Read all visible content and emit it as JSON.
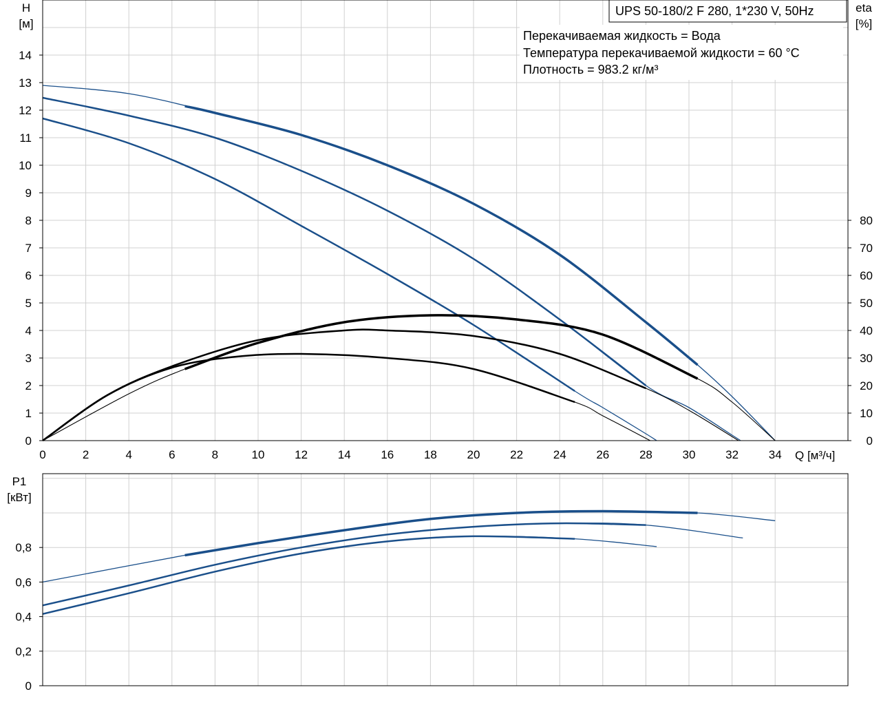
{
  "title_box": "UPS 50-180/2 F 280, 1*230 V, 50Hz",
  "info_lines": [
    "Перекачиваемая жидкость = Вода",
    "Температура перекачиваемой жидкости = 60 °C",
    "Плотность = 983.2 кг/м³"
  ],
  "colors": {
    "head": "#1a4f8a",
    "eta": "#000000",
    "power": "#1a4f8a",
    "grid": "#d0d0d0"
  },
  "chart_data": [
    {
      "type": "line",
      "panel": "head-efficiency",
      "x_label": "Q [м³/ч]",
      "y_left_label": [
        "H",
        "[м]"
      ],
      "y_right_label": [
        "eta",
        "[%]"
      ],
      "xlim": [
        0,
        36
      ],
      "ylim_left": [
        0,
        15
      ],
      "ylim_right": [
        0,
        150
      ],
      "x_ticks": [
        0,
        2,
        4,
        6,
        8,
        10,
        12,
        14,
        16,
        18,
        20,
        22,
        24,
        26,
        28,
        30,
        32,
        34
      ],
      "y_left_ticks": [
        0,
        1,
        2,
        3,
        4,
        5,
        6,
        7,
        8,
        9,
        10,
        11,
        12,
        13,
        14
      ],
      "y_right_ticks": [
        0,
        10,
        20,
        30,
        40,
        50,
        60,
        70,
        80
      ],
      "grid": true,
      "head_series": [
        {
          "axis": "left",
          "bold_range": [
            6.6,
            30.4
          ],
          "x": [
            0,
            4,
            8,
            12,
            16,
            20,
            24,
            28,
            30.4,
            32,
            34
          ],
          "y": [
            12.9,
            12.6,
            11.9,
            11.1,
            10.0,
            8.6,
            6.75,
            4.3,
            2.75,
            1.6,
            0
          ]
        },
        {
          "axis": "left",
          "bold_range": [
            0,
            28
          ],
          "x": [
            0,
            4,
            8,
            12,
            16,
            20,
            24,
            28,
            30,
            32,
            32.4
          ],
          "y": [
            12.45,
            11.8,
            11.0,
            9.8,
            8.35,
            6.6,
            4.4,
            2.0,
            1.2,
            0.2,
            0
          ]
        },
        {
          "axis": "left",
          "bold_range": [
            0,
            24.7
          ],
          "x": [
            0,
            4,
            8,
            12,
            16,
            20,
            24.7,
            26,
            28,
            28.5
          ],
          "y": [
            11.7,
            10.8,
            9.5,
            7.8,
            6.05,
            4.2,
            1.8,
            1.2,
            0.25,
            0
          ]
        }
      ],
      "eta_series": [
        {
          "axis": "right",
          "bold_range": [
            6.6,
            30.4
          ],
          "x": [
            0,
            4,
            6.6,
            10,
            14,
            18,
            22,
            26,
            30.4,
            32,
            34
          ],
          "y": [
            0,
            17,
            26,
            35.5,
            43,
            45.5,
            44,
            38.5,
            22.5,
            14,
            0
          ]
        },
        {
          "axis": "right",
          "bold_range": [
            0,
            28
          ],
          "x": [
            0,
            3,
            6,
            10,
            14,
            16,
            20,
            24,
            28,
            30,
            32.3
          ],
          "y": [
            0,
            16.5,
            27,
            36.5,
            40,
            40,
            38,
            31.5,
            19,
            11,
            0
          ]
        },
        {
          "axis": "right",
          "bold_range": [
            0,
            24.7
          ],
          "x": [
            0,
            3,
            6,
            9,
            12,
            16,
            20,
            24.7,
            26,
            28.2
          ],
          "y": [
            0,
            16.5,
            26.5,
            30.5,
            31.5,
            30,
            26,
            14,
            9,
            0
          ]
        }
      ]
    },
    {
      "type": "line",
      "panel": "power",
      "y_left_label": [
        "P1",
        "[кВт]"
      ],
      "xlim": [
        0,
        36
      ],
      "ylim": [
        0,
        1.2
      ],
      "y_ticks": [
        0,
        0.2,
        0.4,
        0.6,
        0.8
      ],
      "y_tick_labels": [
        "0",
        "0,2",
        "0,4",
        "0,6",
        "0,8"
      ],
      "grid": true,
      "series": [
        {
          "bold_range": [
            6.6,
            30.4
          ],
          "x": [
            0,
            6.6,
            10,
            14,
            18,
            22,
            26,
            30.4,
            34
          ],
          "y": [
            0.6,
            0.755,
            0.825,
            0.9,
            0.965,
            1.0,
            1.01,
            1.0,
            0.955
          ]
        },
        {
          "bold_range": [
            0,
            28
          ],
          "x": [
            0,
            4,
            8,
            12,
            16,
            20,
            24,
            28,
            32.5
          ],
          "y": [
            0.465,
            0.58,
            0.7,
            0.8,
            0.875,
            0.92,
            0.94,
            0.93,
            0.855
          ]
        },
        {
          "bold_range": [
            0,
            24.7
          ],
          "x": [
            0,
            4,
            8,
            12,
            16,
            20,
            24.7,
            28.5
          ],
          "y": [
            0.415,
            0.535,
            0.66,
            0.765,
            0.835,
            0.865,
            0.85,
            0.805
          ]
        }
      ]
    }
  ]
}
